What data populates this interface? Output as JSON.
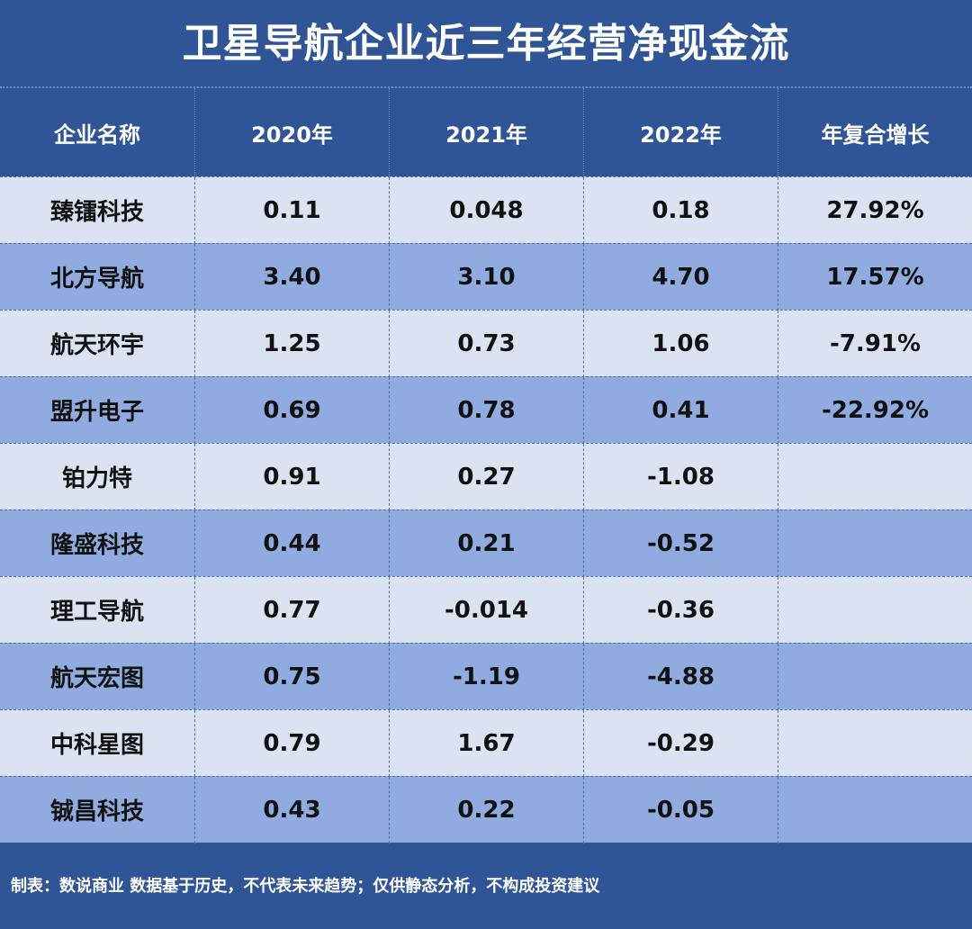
{
  "title": "卫星导航企业近三年经营净现金流",
  "header": {
    "company": "企业名称",
    "y2020": "2020年",
    "y2021": "2021年",
    "y2022": "2022年",
    "cagr": "年复合增长"
  },
  "rows": [
    {
      "company": "臻镭科技",
      "y2020": "0.11",
      "y2021": "0.048",
      "y2022": "0.18",
      "cagr": "27.92%"
    },
    {
      "company": "北方导航",
      "y2020": "3.40",
      "y2021": "3.10",
      "y2022": "4.70",
      "cagr": "17.57%"
    },
    {
      "company": "航天环宇",
      "y2020": "1.25",
      "y2021": "0.73",
      "y2022": "1.06",
      "cagr": "-7.91%"
    },
    {
      "company": "盟升电子",
      "y2020": "0.69",
      "y2021": "0.78",
      "y2022": "0.41",
      "cagr": "-22.92%"
    },
    {
      "company": "铂力特",
      "y2020": "0.91",
      "y2021": "0.27",
      "y2022": "-1.08",
      "cagr": ""
    },
    {
      "company": "隆盛科技",
      "y2020": "0.44",
      "y2021": "0.21",
      "y2022": "-0.52",
      "cagr": ""
    },
    {
      "company": "理工导航",
      "y2020": "0.77",
      "y2021": "-0.014",
      "y2022": "-0.36",
      "cagr": ""
    },
    {
      "company": "航天宏图",
      "y2020": "0.75",
      "y2021": "-1.19",
      "y2022": "-4.88",
      "cagr": ""
    },
    {
      "company": "中科星图",
      "y2020": "0.79",
      "y2021": "1.67",
      "y2022": "-0.29",
      "cagr": ""
    },
    {
      "company": "铖昌科技",
      "y2020": "0.43",
      "y2021": "0.22",
      "y2022": "-0.05",
      "cagr": ""
    }
  ],
  "footer": "制表：数说商业 数据基于历史，不代表未来趋势；仅供静态分析，不构成投资建议",
  "colors": {
    "background": "#2f5597",
    "row_light": "#dbe3f3",
    "row_dark": "#8fabdf",
    "text_light": "#ffffff",
    "text_dark": "#111111"
  },
  "chart_data": {
    "type": "table",
    "title": "卫星导航企业近三年经营净现金流",
    "columns": [
      "企业名称",
      "2020年",
      "2021年",
      "2022年",
      "年复合增长"
    ],
    "rows": [
      [
        "臻镭科技",
        "0.11",
        "0.048",
        "0.18",
        "27.92%"
      ],
      [
        "北方导航",
        "3.40",
        "3.10",
        "4.70",
        "17.57%"
      ],
      [
        "航天环宇",
        "1.25",
        "0.73",
        "1.06",
        "-7.91%"
      ],
      [
        "盟升电子",
        "0.69",
        "0.78",
        "0.41",
        "-22.92%"
      ],
      [
        "铂力特",
        "0.91",
        "0.27",
        "-1.08",
        ""
      ],
      [
        "隆盛科技",
        "0.44",
        "0.21",
        "-0.52",
        ""
      ],
      [
        "理工导航",
        "0.77",
        "-0.014",
        "-0.36",
        ""
      ],
      [
        "航天宏图",
        "0.75",
        "-1.19",
        "-4.88",
        ""
      ],
      [
        "中科星图",
        "0.79",
        "1.67",
        "-0.29",
        ""
      ],
      [
        "铖昌科技",
        "0.43",
        "0.22",
        "-0.05",
        ""
      ]
    ]
  }
}
